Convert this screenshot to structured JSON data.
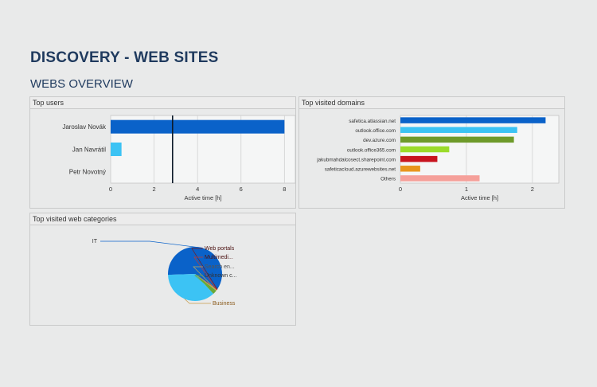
{
  "page": {
    "title": "DISCOVERY - WEB SITES",
    "subtitle": "WEBS OVERVIEW"
  },
  "panels": {
    "top_users": "Top users",
    "top_domains": "Top visited domains",
    "top_categories": "Top visited web categories"
  },
  "chart_data": [
    {
      "type": "bar",
      "orientation": "horizontal",
      "title": "Top users",
      "categories": [
        "Jaroslav Novák",
        "Jan Navrátil",
        "Petr Novotný"
      ],
      "values": [
        8.0,
        0.5,
        0
      ],
      "colors": [
        "#0a62c9",
        "#3cc3f4",
        "#3cc3f4"
      ],
      "xlabel": "Active time [h]",
      "xlim": [
        0,
        8.5
      ],
      "xticks": [
        0,
        2,
        4,
        6,
        8
      ],
      "reference_line": 2.85,
      "grid": true
    },
    {
      "type": "bar",
      "orientation": "horizontal",
      "title": "Top visited domains",
      "categories": [
        "safetica.atlassian.net",
        "outlook.office.com",
        "dev.azure.com",
        "outlook.office365.com",
        "jakubmahdalcosect.sharepoint.com",
        "safeticacloud.azurewebsites.net",
        "Others"
      ],
      "values": [
        2.2,
        1.77,
        1.72,
        0.74,
        0.56,
        0.3,
        1.2
      ],
      "colors": [
        "#0a62c9",
        "#3cc3f4",
        "#6e9a2a",
        "#9bdb2a",
        "#c8141e",
        "#e8951c",
        "#f5a09a"
      ],
      "xlabel": "Active time [h]",
      "xlim": [
        0,
        2.4
      ],
      "xticks": [
        0,
        1,
        2
      ],
      "grid": true
    },
    {
      "type": "pie",
      "title": "Top visited web categories",
      "categories": [
        "IT",
        "Web portals",
        "Multimedi...",
        "Search en...",
        "Unknown c...",
        "Business"
      ],
      "values": [
        60,
        0.4,
        0.3,
        0.5,
        2.5,
        36.3
      ],
      "colors": [
        "#0a62c9",
        "#7a1a1a",
        "#c83a2a",
        "#c8a858",
        "#6aa838",
        "#3cc3f4"
      ]
    }
  ]
}
